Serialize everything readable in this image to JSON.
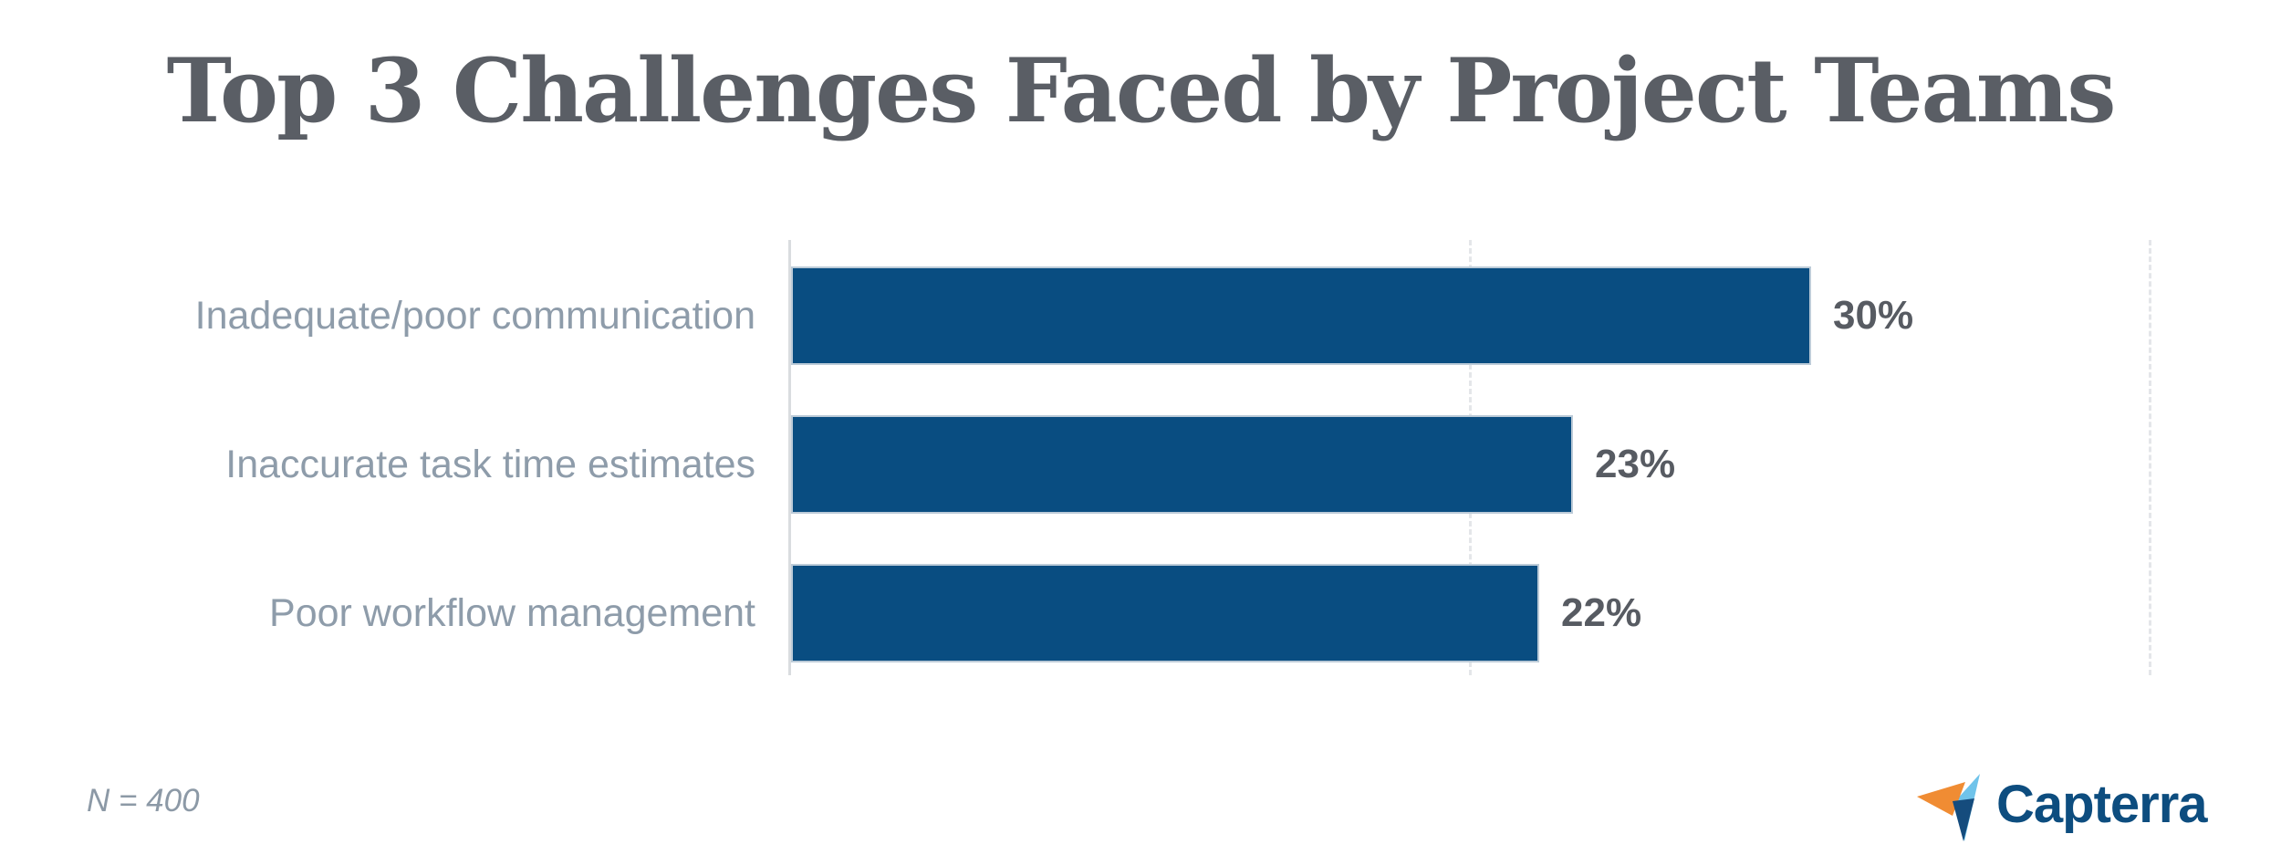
{
  "title": "Top 3 Challenges Faced by Project Teams",
  "footnote": "N = 400",
  "brand": {
    "name": "Capterra",
    "mark_colors": {
      "orange": "#f08c33",
      "light_blue": "#6fc3ea",
      "dark_blue": "#154c7d"
    },
    "wordmark_color": "#0d4d7f"
  },
  "colors": {
    "background": "#ffffff",
    "bar": "#094d81",
    "bar_edge": "#bccbd8",
    "title_text": "#5a5e65",
    "category_text": "#8e9caa",
    "value_text": "#575b62",
    "gridline": "#d9dcdf",
    "footnote_text": "#8c99a6"
  },
  "chart_data": {
    "type": "bar",
    "orientation": "horizontal",
    "title": "Top 3 Challenges Faced by Project Teams",
    "categories": [
      "Inadequate/poor communication",
      "Inaccurate task time estimates",
      "Poor workflow management"
    ],
    "values": [
      30,
      23,
      22
    ],
    "value_labels": [
      "30%",
      "23%",
      "22%"
    ],
    "xlabel": "",
    "ylabel": "",
    "xlim": [
      0,
      40
    ],
    "gridlines": [
      0,
      20,
      40
    ],
    "grid": true,
    "legend": false,
    "data_labels_position": "right-of-bar",
    "footnote": "N = 400",
    "source_brand": "Capterra"
  }
}
